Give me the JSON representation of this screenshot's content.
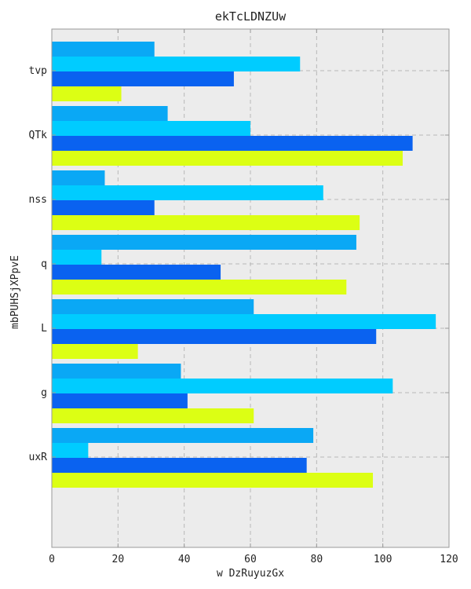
{
  "chart_data": {
    "type": "bar",
    "orientation": "horizontal",
    "title": "ekTcLDNZUw",
    "xlabel": "w DzRuyuzGx",
    "ylabel": "mbPUHSjXPpvE",
    "categories": [
      "tvp",
      "QTk",
      "nss",
      "q",
      "L",
      "g",
      "uxR"
    ],
    "xlim": [
      0,
      120
    ],
    "xticks": [
      0,
      20,
      40,
      60,
      80,
      100,
      120
    ],
    "grid": true,
    "series": [
      {
        "color": "#0aa8f5",
        "values": [
          31,
          35,
          16,
          92,
          61,
          39,
          79
        ]
      },
      {
        "color": "#00ccff",
        "values": [
          75,
          60,
          82,
          15,
          116,
          103,
          11
        ]
      },
      {
        "color": "#0a62f0",
        "values": [
          55,
          109,
          31,
          51,
          98,
          41,
          77
        ]
      },
      {
        "color": "#dcff14",
        "values": [
          21,
          106,
          93,
          89,
          26,
          61,
          97
        ]
      }
    ],
    "colors": {
      "plot_background": "#ececec",
      "grid": "#b8b8b8",
      "axis": "#999999"
    }
  }
}
